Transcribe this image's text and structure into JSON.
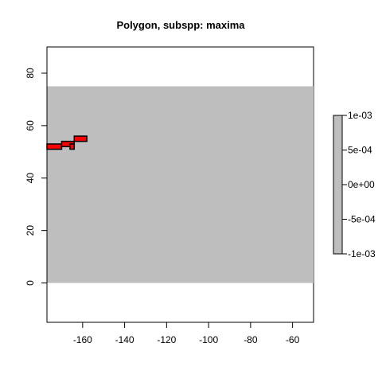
{
  "chart_data": {
    "type": "heatmap",
    "title": "Polygon, subspp: maxima",
    "xlabel": "",
    "ylabel": "",
    "xlim": [
      -177,
      -50
    ],
    "ylim": [
      -15,
      90
    ],
    "x_ticks": [
      -160,
      -140,
      -120,
      -100,
      -80,
      -60
    ],
    "y_ticks": [
      0,
      20,
      40,
      60,
      80
    ],
    "raster_extent": {
      "xmin": -177,
      "xmax": -50,
      "ymin": 0,
      "ymax": 75
    },
    "raster_fill": "#bebebe",
    "polygon_fill": "#ff0000",
    "polygon_stroke": "#000000",
    "polygon_cells": [
      {
        "x1": -177,
        "x2": -170,
        "y1": 51,
        "y2": 53
      },
      {
        "x1": -170,
        "x2": -164,
        "y1": 52,
        "y2": 54
      },
      {
        "x1": -164,
        "x2": -158,
        "y1": 54,
        "y2": 56
      },
      {
        "x1": -166,
        "x2": -164,
        "y1": 51,
        "y2": 53
      }
    ],
    "legend": {
      "range": [
        -0.001,
        0.001
      ],
      "ticks": [
        0.001,
        0.0005,
        0,
        -0.0005,
        -0.001
      ],
      "tick_labels": [
        "1e-03",
        "5e-04",
        "0e+00",
        "-5e-04",
        "-1e-03"
      ],
      "color": "#bebebe"
    },
    "grid": false
  }
}
